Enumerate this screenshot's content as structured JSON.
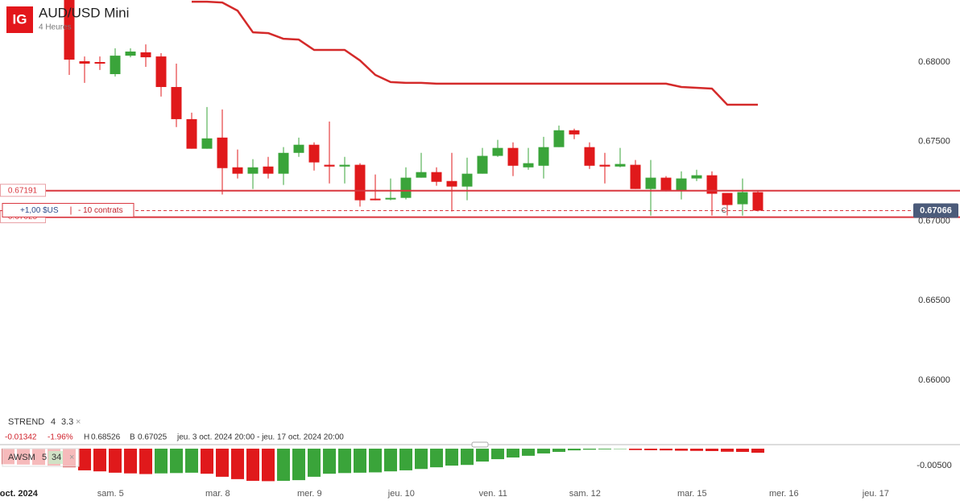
{
  "chart_data": [
    {
      "type": "candlestick",
      "title": "AUD/USD Mini",
      "subtitle": "4 Heures",
      "logo": "IG",
      "open": [
        null,
        null,
        null,
        null,
        0.6842,
        0.68005,
        0.68,
        0.67924,
        0.6804,
        0.68061,
        0.68035,
        0.67843,
        0.67641,
        0.67455,
        0.67525,
        0.67338,
        0.67298,
        0.67343,
        0.67298,
        0.67429,
        0.6748,
        0.67354,
        0.67343,
        0.67354,
        0.67141,
        0.67136,
        0.67146,
        0.67273,
        0.67308,
        0.67252,
        0.67217,
        0.67298,
        0.6741,
        0.6746,
        0.67338,
        0.67348,
        0.67465,
        0.67571,
        0.67465,
        0.67354,
        0.67343,
        0.67354,
        0.67202,
        0.67273,
        0.67192,
        0.67268,
        0.67288,
        0.67177,
        0.67106,
        0.67182,
        null,
        null,
        null,
        null,
        null,
        null,
        null,
        null
      ],
      "high": [
        null,
        null,
        null,
        null,
        0.68526,
        0.68035,
        0.68035,
        0.68086,
        0.68086,
        0.68111,
        0.68056,
        0.6799,
        0.67682,
        0.67717,
        0.67702,
        0.6745,
        0.67389,
        0.67404,
        0.67465,
        0.67525,
        0.67495,
        0.67626,
        0.67404,
        0.67364,
        0.67293,
        0.67268,
        0.67338,
        0.67429,
        0.67338,
        0.67429,
        0.67399,
        0.6746,
        0.67511,
        0.67495,
        0.6746,
        0.6753,
        0.67601,
        0.67581,
        0.67495,
        0.67429,
        0.6746,
        0.67384,
        0.67384,
        0.67283,
        0.67313,
        0.67323,
        0.67313,
        0.67177,
        0.67268,
        0.67192,
        null,
        null,
        null,
        null,
        null,
        null,
        null,
        null
      ],
      "low": [
        null,
        null,
        null,
        null,
        0.67919,
        0.67869,
        0.6795,
        0.67909,
        0.6803,
        0.6797,
        0.67783,
        0.67591,
        0.67455,
        0.67455,
        0.67167,
        0.67268,
        0.67202,
        0.67268,
        0.67227,
        0.67404,
        0.67318,
        0.67237,
        0.67237,
        0.67091,
        0.67131,
        0.67131,
        0.67136,
        0.67273,
        0.67222,
        0.67061,
        0.67131,
        0.67298,
        0.67404,
        0.67283,
        0.67323,
        0.67268,
        0.67465,
        0.67515,
        0.67328,
        0.67237,
        0.67338,
        0.67202,
        0.67035,
        0.67187,
        0.67136,
        0.67252,
        0.67035,
        0.67035,
        0.67035,
        0.67061,
        null,
        null,
        null,
        null,
        null,
        null,
        null,
        null
      ],
      "close": [
        null,
        null,
        null,
        null,
        0.68015,
        0.6799,
        0.6799,
        0.6804,
        0.68066,
        0.6803,
        0.67843,
        0.67641,
        0.67455,
        0.6752,
        0.67333,
        0.67298,
        0.67338,
        0.67298,
        0.67429,
        0.6748,
        0.67369,
        0.67343,
        0.67354,
        0.67131,
        0.67131,
        0.67146,
        0.67273,
        0.67308,
        0.67247,
        0.67217,
        0.67298,
        0.6741,
        0.6746,
        0.67348,
        0.67364,
        0.67465,
        0.67571,
        0.67545,
        0.67348,
        0.67343,
        0.67359,
        0.67202,
        0.67273,
        0.67192,
        0.67268,
        0.67288,
        0.67172,
        0.67101,
        0.67182,
        0.67066,
        null,
        null,
        null,
        null,
        null,
        null,
        null,
        null
      ],
      "up_color": "#3aa43a",
      "down_color": "#e0191b",
      "ylim": [
        0.6561,
        0.6839
      ],
      "yticks": [
        {
          "value": 0.68,
          "label": "0.68000"
        },
        {
          "value": 0.675,
          "label": "0.67500"
        },
        {
          "value": 0.67,
          "label": "0.67000"
        },
        {
          "value": 0.665,
          "label": "0.66500"
        },
        {
          "value": 0.66,
          "label": "0.66000"
        }
      ],
      "overlay": {
        "name": "STREND",
        "params": [
          4,
          3.3
        ],
        "color": "#d42a2a",
        "values": [
          null,
          null,
          null,
          null,
          null,
          null,
          null,
          null,
          null,
          null,
          null,
          null,
          0.68379,
          0.68379,
          0.68374,
          0.68323,
          0.68187,
          0.68182,
          0.68146,
          0.68141,
          0.68076,
          0.68076,
          0.68076,
          0.6801,
          0.67919,
          0.67874,
          0.67869,
          0.67869,
          0.67864,
          0.67864,
          0.67864,
          0.67864,
          0.67864,
          0.67864,
          0.67864,
          0.67864,
          0.67864,
          0.67864,
          0.67864,
          0.67864,
          0.67864,
          0.67864,
          0.67864,
          0.67864,
          0.67843,
          0.67838,
          0.67833,
          0.67732,
          0.67732,
          0.67732,
          null,
          null,
          null,
          null,
          null,
          null,
          null,
          null
        ]
      },
      "level_color": "#d9363e",
      "levels": [
        {
          "value": 0.67191,
          "label": "0.67191"
        },
        {
          "value": 0.67025,
          "label": "0.67025"
        }
      ],
      "last_price": {
        "value": 0.67066,
        "label": "0.67066"
      },
      "position": {
        "pnl": "+1,00 $US",
        "size": "- 10 contrats"
      },
      "marker": "C",
      "stats": {
        "change": "-0.01342",
        "change_pct": "-1.96%",
        "high_label": "H",
        "high": "0.68526",
        "low_label": "B",
        "low": "0.67025",
        "range": "jeu. 3 oct. 2024 20:00 - jeu. 17 oct. 2024 20:00"
      }
    },
    {
      "type": "bar",
      "name": "AWSM",
      "params": [
        5,
        34
      ],
      "categories": [
        null,
        "oct. 2024",
        null,
        null,
        null,
        null,
        null,
        "sam. 5",
        null,
        null,
        null,
        null,
        null,
        null,
        "mar. 8",
        null,
        null,
        null,
        null,
        null,
        "mer. 9",
        null,
        null,
        null,
        null,
        null,
        "jeu. 10",
        null,
        null,
        null,
        null,
        null,
        "ven. 11",
        null,
        null,
        null,
        null,
        null,
        "sam. 12",
        null,
        null,
        null,
        null,
        null,
        null,
        "mar. 15",
        null,
        null,
        null,
        null,
        null,
        "mer. 16",
        null,
        null,
        null,
        null,
        null,
        "jeu. 17"
      ],
      "values": [
        -0.0046,
        -0.0047,
        -0.0048,
        -0.005,
        -0.0055,
        -0.0064,
        -0.0067,
        -0.0071,
        -0.0073,
        -0.0075,
        -0.0073,
        -0.0072,
        -0.0071,
        -0.0074,
        -0.0083,
        -0.009,
        -0.0095,
        -0.0096,
        -0.0095,
        -0.0093,
        -0.0083,
        -0.0074,
        -0.0072,
        -0.0071,
        -0.007,
        -0.0067,
        -0.0064,
        -0.006,
        -0.0055,
        -0.005,
        -0.0048,
        -0.0038,
        -0.0031,
        -0.0026,
        -0.0021,
        -0.0014,
        -0.00095,
        -0.0005,
        -0.0003,
        -0.0002,
        -0.0001,
        -0.0004,
        -0.00045,
        -0.0005,
        -0.0006,
        -0.00065,
        -0.0007,
        -0.0009,
        -0.00095,
        -0.0012,
        null,
        null,
        null,
        null,
        null,
        null,
        null,
        null
      ],
      "up_color": "#3aa43a",
      "down_color": "#e0191b",
      "ylim": [
        -0.0107,
        0.0012
      ],
      "yticks": [
        {
          "value": -0.005,
          "label": "-0.00500"
        }
      ]
    }
  ]
}
